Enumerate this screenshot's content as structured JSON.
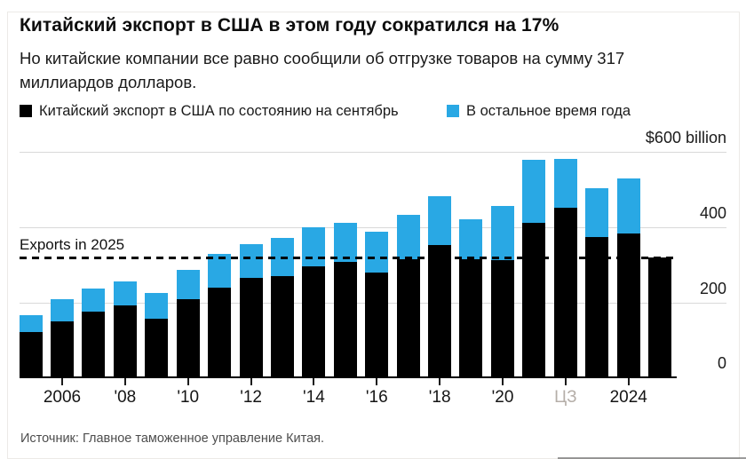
{
  "header": {
    "title": "Китайский экспорт в США в этом году сократился на 17%",
    "subtitle_line1": "Но китайские компании все равно сообщили об отгрузке товаров на сумму 317",
    "subtitle_line2": "миллиардов долларов."
  },
  "legend": {
    "item1_label": "Китайский экспорт в США по состоянию на сентябрь",
    "item1_color": "#000000",
    "item2_label": "В остальное время года",
    "item2_color": "#29a8e4"
  },
  "chart_data": {
    "type": "bar",
    "stacked": true,
    "unit": "USD billions",
    "title": "Китайский экспорт в США в этом году сократился на 17%",
    "ylim": [
      0,
      600
    ],
    "y_axis_labels": [
      "$600 billion",
      "400",
      "200",
      "0"
    ],
    "grid": true,
    "categories": [
      2005,
      2006,
      2007,
      2008,
      2009,
      2010,
      2011,
      2012,
      2013,
      2014,
      2015,
      2016,
      2017,
      2018,
      2019,
      2020,
      2021,
      2022,
      2023,
      2024,
      2025
    ],
    "series": [
      {
        "name": "Китайский экспорт в США по состоянию на сентябрь",
        "color": "#000000",
        "values": [
          117,
          147,
          171,
          189,
          154,
          206,
          236,
          262,
          266,
          292,
          303,
          276,
          311,
          349,
          311,
          308,
          408,
          448,
          369,
          379,
          317
        ]
      },
      {
        "name": "В остальное время года",
        "color": "#29a8e4",
        "values": [
          46,
          57,
          62,
          63,
          67,
          77,
          89,
          90,
          102,
          104,
          106,
          109,
          119,
          129,
          107,
          144,
          168,
          130,
          131,
          146,
          0
        ]
      }
    ],
    "x_tick_labels": [
      "2006",
      "'08",
      "'10",
      "'12",
      "'14",
      "'16",
      "'18",
      "'20",
      "ЦЗ",
      "2024"
    ],
    "faded_tick_index": 8,
    "reference_line": {
      "label": "Exports in 2025",
      "value": 317
    }
  },
  "footer": {
    "source": "Источник: Главное таможенное управление Китая."
  }
}
